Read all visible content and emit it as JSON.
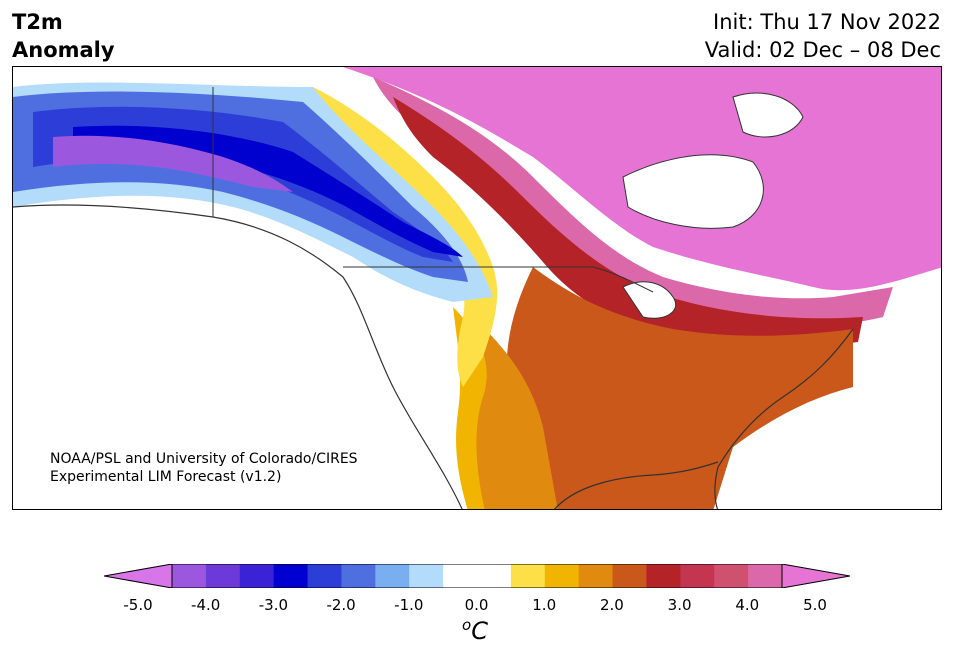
{
  "header": {
    "title_line1": "T2m",
    "title_line2": "Anomaly",
    "init": "Init: Thu 17 Nov 2022",
    "valid": "Valid: 02 Dec – 08 Dec"
  },
  "credit": {
    "line1": "NOAA/PSL and University of Colorado/CIRES",
    "line2": "Experimental LIM Forecast (v1.2)"
  },
  "colorbar": {
    "ticks": [
      "-5.0",
      "-4.0",
      "-3.0",
      "-2.0",
      "-1.0",
      "0.0",
      "1.0",
      "2.0",
      "3.0",
      "4.0",
      "5.0"
    ],
    "unit_sup": "o",
    "unit_main": "C",
    "colors": [
      "#d875e8",
      "#9b58de",
      "#6c3ad9",
      "#3c22d6",
      "#0000cf",
      "#2c3dd8",
      "#4f6fe0",
      "#79aef0",
      "#b2dcfa",
      "#ffffff",
      "#ffffff",
      "#fde048",
      "#f1b400",
      "#e08a10",
      "#c9581a",
      "#b32328",
      "#c43550",
      "#d0506f",
      "#db68a8",
      "#e574d4"
    ]
  },
  "map": {
    "region": "North America",
    "colors": {
      "strong_cold": "#0000cf",
      "cold": "#2c3dd8",
      "cool": "#79aef0",
      "slight_warm": "#fde048",
      "warm": "#e08a10",
      "hot": "#c9581a",
      "very_hot": "#b32328",
      "extreme_warm": "#e574d4"
    }
  }
}
